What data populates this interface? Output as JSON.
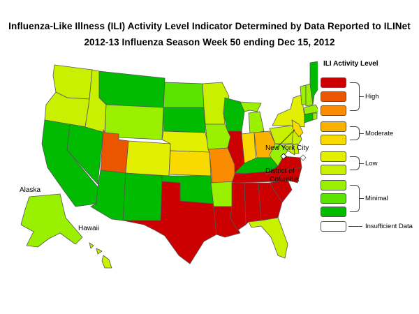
{
  "title": "Influenza-Like Illness (ILI) Activity Level Indicator Determined by Data Reported to ILINet",
  "subtitle": "2012-13  Influenza Season Week  50 ending Dec 15, 2012",
  "map_labels": {
    "new_york_city": "New York City",
    "dc_line1": "District of",
    "dc_line2": "Columbia",
    "alaska": "Alaska",
    "hawaii": "Hawaii"
  },
  "legend": {
    "title": "ILI Activity Level",
    "groups": [
      {
        "label": "High",
        "levels": [
          10,
          9,
          8
        ]
      },
      {
        "label": "Moderate",
        "levels": [
          7,
          6
        ]
      },
      {
        "label": "Low",
        "levels": [
          5,
          4
        ]
      },
      {
        "label": "Minimal",
        "levels": [
          3,
          2,
          1
        ]
      },
      {
        "label": "Insufficient Data",
        "levels": [
          0
        ]
      }
    ],
    "level_colors": {
      "10": "#cc0000",
      "9": "#ec5500",
      "8": "#f98c00",
      "7": "#fbb100",
      "6": "#f9da00",
      "5": "#e2ef00",
      "4": "#c8f000",
      "3": "#99f000",
      "2": "#5ae400",
      "1": "#00bb00",
      "0": "#ffffff"
    }
  },
  "states": {
    "WA": 4,
    "OR": 4,
    "CA": 1,
    "NV": 1,
    "ID": 4,
    "MT": 1,
    "WY": 3,
    "UT": 9,
    "AZ": 1,
    "CO": 5,
    "NM": 1,
    "ND": 2,
    "SD": 1,
    "NE": 5,
    "KS": 6,
    "OK": 1,
    "TX": 10,
    "MN": 4,
    "IA": 3,
    "MO": 8,
    "AR": 3,
    "LA": 10,
    "WI": 1,
    "IL": 10,
    "MI": 3,
    "IN": 6,
    "OH": 7,
    "KY": 1,
    "TN": 10,
    "MS": 10,
    "AL": 10,
    "GA": 10,
    "FL": 4,
    "SC": 10,
    "NC": 10,
    "VA": 10,
    "WV": 3,
    "PA": 4,
    "NY": 5,
    "VT": 3,
    "NH": 3,
    "ME": 1,
    "MA": 3,
    "CT": 1,
    "RI": 3,
    "NJ": 4,
    "DE": 4,
    "MD": 4,
    "NYC": 6,
    "DC": 0,
    "AK": 3,
    "HI": 4
  }
}
